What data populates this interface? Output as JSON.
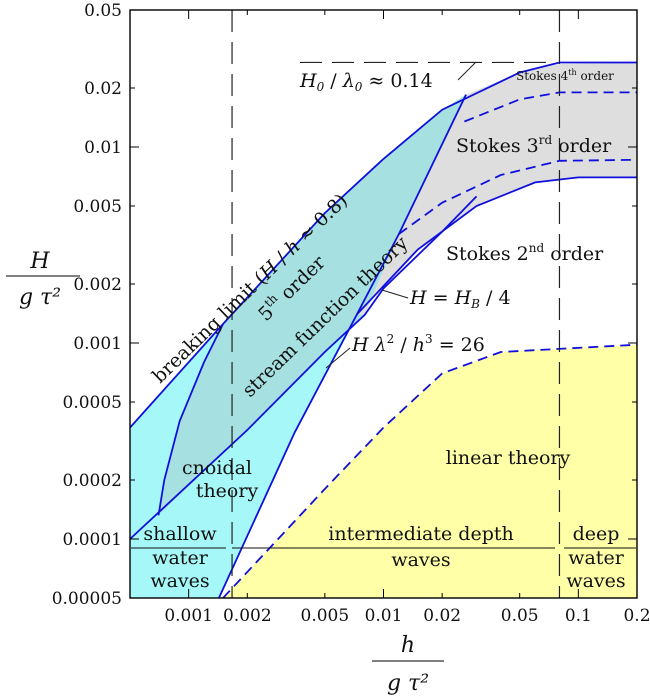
{
  "chart_data": {
    "type": "diagram",
    "xlabel_num": "h",
    "xlabel_den": "g τ²",
    "ylabel_num": "H",
    "ylabel_den": "g τ²",
    "x_scale": "log",
    "y_scale": "log",
    "xlim": [
      0.0005,
      0.2
    ],
    "ylim": [
      5e-05,
      0.05
    ],
    "x_ticks": [
      {
        "value": 0.001,
        "label": "0.001"
      },
      {
        "value": 0.002,
        "label": "0.002"
      },
      {
        "value": 0.005,
        "label": "0.005"
      },
      {
        "value": 0.01,
        "label": "0.01"
      },
      {
        "value": 0.02,
        "label": "0.02"
      },
      {
        "value": 0.05,
        "label": "0.05"
      },
      {
        "value": 0.1,
        "label": "0.1"
      },
      {
        "value": 0.2,
        "label": "0.2"
      }
    ],
    "y_ticks": [
      {
        "value": 5e-05,
        "label": "0.00005"
      },
      {
        "value": 0.0001,
        "label": "0.0001"
      },
      {
        "value": 0.0002,
        "label": "0.0002"
      },
      {
        "value": 0.0005,
        "label": "0.0005"
      },
      {
        "value": 0.001,
        "label": "0.001"
      },
      {
        "value": 0.002,
        "label": "0.002"
      },
      {
        "value": 0.005,
        "label": "0.005"
      },
      {
        "value": 0.01,
        "label": "0.01"
      },
      {
        "value": 0.02,
        "label": "0.02"
      },
      {
        "value": 0.05,
        "label": "0.05"
      }
    ],
    "regions": [
      {
        "name": "linear theory",
        "color": "#ffffa8"
      },
      {
        "name": "cnoidal theory",
        "color": "#a6f8f8"
      },
      {
        "name": "stream function theory",
        "color": "#a6e0e0"
      },
      {
        "name": "Stokes theory",
        "color": "#dedede"
      }
    ],
    "curves": {
      "breaking_limit": [
        [
          0.0005,
          0.00037
        ],
        [
          0.0015,
          0.00125
        ],
        [
          0.005,
          0.0046
        ],
        [
          0.01,
          0.0087
        ],
        [
          0.02,
          0.0155
        ],
        [
          0.05,
          0.024
        ],
        [
          0.08,
          0.027
        ],
        [
          0.2,
          0.027
        ]
      ],
      "stokes_4th_upper": [
        [
          0.026,
          0.019
        ],
        [
          0.05,
          0.024
        ],
        [
          0.08,
          0.0265
        ],
        [
          0.2,
          0.027
        ]
      ],
      "stokes_4th_lower": [
        [
          0.026,
          0.0135
        ],
        [
          0.05,
          0.0175
        ],
        [
          0.08,
          0.019
        ],
        [
          0.2,
          0.019
        ]
      ],
      "stokes_3rd_lower": [
        [
          0.012,
          0.0036
        ],
        [
          0.02,
          0.0052
        ],
        [
          0.04,
          0.0072
        ],
        [
          0.08,
          0.0085
        ],
        [
          0.2,
          0.0086
        ]
      ],
      "stokes_2nd_lower": [
        [
          0.0073,
          0.0014
        ],
        [
          0.015,
          0.003
        ],
        [
          0.03,
          0.005
        ],
        [
          0.06,
          0.0066
        ],
        [
          0.1,
          0.007
        ],
        [
          0.2,
          0.007
        ]
      ],
      "h_eq_hb4": [
        [
          0.0005,
          0.0001
        ],
        [
          0.002,
          0.00036
        ],
        [
          0.005,
          0.0009
        ],
        [
          0.008,
          0.00139
        ],
        [
          0.01,
          0.0019
        ],
        [
          0.02,
          0.0037
        ],
        [
          0.03,
          0.0056
        ]
      ],
      "ursell": [
        [
          0.00143,
          5e-05
        ],
        [
          0.0035,
          0.00035
        ],
        [
          0.0073,
          0.0014
        ],
        [
          0.012,
          0.0036
        ],
        [
          0.0265,
          0.0185
        ]
      ],
      "cnoidal_left": [
        [
          0.0007,
          0.000132
        ],
        [
          0.00075,
          0.0002
        ],
        [
          0.0009,
          0.0004
        ],
        [
          0.0012,
          0.0008
        ],
        [
          0.0015,
          0.00125
        ]
      ],
      "linear_limit": [
        [
          0.0015,
          5e-05
        ],
        [
          0.005,
          0.00018
        ],
        [
          0.01,
          0.00037
        ],
        [
          0.02,
          0.0007
        ],
        [
          0.04,
          0.0009
        ],
        [
          0.2,
          0.00098
        ]
      ],
      "shallow_limit_x": 0.00167,
      "deep_limit_x": 0.08,
      "wave_class_y": 9e-05,
      "h0_lambda0_y": 0.027
    },
    "annotations": {
      "breaking_limit": "breaking limit (H / h ≈ 0.8)",
      "stream_5th_order": "5th order",
      "stream_function_theory": "stream function theory",
      "stokes_4th": "Stokes 4th order",
      "stokes_3rd": "Stokes 3rd order",
      "stokes_2nd": "Stokes 2nd order",
      "h0_lambda0": "H0 / λ0 ≈ 0.14",
      "h_eq_hb4": "H = HB / 4",
      "ursell": "H λ2 / h3 = 26",
      "cnoidal_1": "cnoidal",
      "cnoidal_2": "theory",
      "linear_theory": "linear theory",
      "shallow_1": "shallow",
      "shallow_2": "water",
      "shallow_3": "waves",
      "intermediate_1": "intermediate depth",
      "intermediate_2": "waves",
      "deep_1": "deep",
      "deep_2": "water",
      "deep_3": "waves"
    }
  }
}
